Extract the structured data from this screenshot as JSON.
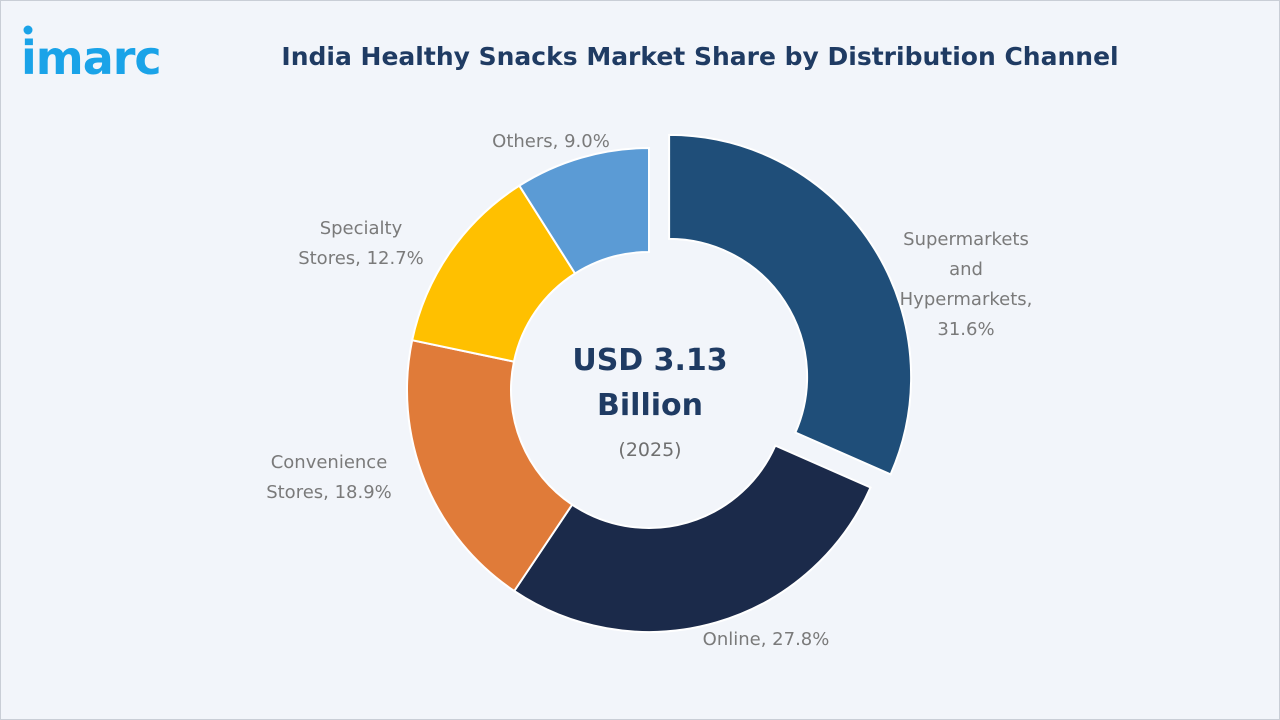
{
  "logo": {
    "text": "imarc",
    "color": "#1aa3e8"
  },
  "chart_data": {
    "type": "pie",
    "variant": "donut",
    "title": "India Healthy Snacks Market Share by Distribution Channel",
    "center": {
      "line1": "USD 3.13",
      "line2": "Billion",
      "line3": "(2025)"
    },
    "unit": "%",
    "slices": [
      {
        "label": [
          "Supermarkets",
          "and",
          "Hypermarkets,",
          "31.6%"
        ],
        "value": 31.6,
        "color": "#1f4e79",
        "exploded": true
      },
      {
        "label": [
          "Online, 27.8%"
        ],
        "value": 27.8,
        "color": "#1b2a4a",
        "exploded": false
      },
      {
        "label": [
          "Convenience",
          "Stores, 18.9%"
        ],
        "value": 18.9,
        "color": "#e07b39",
        "exploded": false
      },
      {
        "label": [
          "Specialty",
          "Stores, 12.7%"
        ],
        "value": 12.7,
        "color": "#ffc000",
        "exploded": false
      },
      {
        "label": [
          "Others, 9.0%"
        ],
        "value": 9.0,
        "color": "#5b9bd5",
        "exploded": false
      }
    ]
  }
}
